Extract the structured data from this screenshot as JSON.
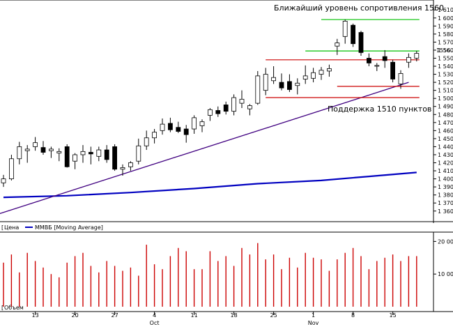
{
  "annotations": {
    "resistance": "Ближайший уровень сопротивления 1560",
    "support": "Поддержка 1510 пунктов"
  },
  "price_panel": {
    "legend_price": "Цена",
    "legend_ma": "ММВБ [Moving Average]",
    "last_price_label": "1556."
  },
  "volume_panel": {
    "legend": "Объем"
  },
  "colors": {
    "bull_body": "#ffffff",
    "bear_body": "#000000",
    "wick": "#000000",
    "moving_average": "#0000c0",
    "trendline": "#400080",
    "resistance_line": "#00c000",
    "level_line": "#cc0000",
    "volume_bar": "#cc0000"
  },
  "chart_data": [
    {
      "type": "candlestick",
      "ylim": [
        1352,
        1618
      ],
      "yticks": [
        1360,
        1370,
        1380,
        1390,
        1400,
        1410,
        1420,
        1430,
        1440,
        1450,
        1460,
        1470,
        1480,
        1490,
        1500,
        1510,
        1520,
        1530,
        1540,
        1550,
        1560,
        1570,
        1580,
        1590,
        1600,
        1610
      ],
      "x_tick_labels": [
        "13",
        "20",
        "27",
        "4",
        "11",
        "18",
        "25",
        "1",
        "8",
        "15"
      ],
      "x_tick_indices": [
        4,
        9,
        14,
        19,
        24,
        29,
        34,
        39,
        44,
        49
      ],
      "month_labels": [
        {
          "label": "Oct",
          "index": 19
        },
        {
          "label": "Nov",
          "index": 39
        }
      ],
      "candles": [
        {
          "o": 1395,
          "h": 1405,
          "l": 1390,
          "c": 1400
        },
        {
          "o": 1400,
          "h": 1430,
          "l": 1398,
          "c": 1425
        },
        {
          "o": 1425,
          "h": 1446,
          "l": 1418,
          "c": 1440
        },
        {
          "o": 1435,
          "h": 1442,
          "l": 1420,
          "c": 1437
        },
        {
          "o": 1440,
          "h": 1452,
          "l": 1435,
          "c": 1445
        },
        {
          "o": 1439,
          "h": 1447,
          "l": 1430,
          "c": 1433
        },
        {
          "o": 1435,
          "h": 1440,
          "l": 1426,
          "c": 1437
        },
        {
          "o": 1432,
          "h": 1438,
          "l": 1422,
          "c": 1434
        },
        {
          "o": 1440,
          "h": 1443,
          "l": 1414,
          "c": 1415
        },
        {
          "o": 1422,
          "h": 1432,
          "l": 1412,
          "c": 1430
        },
        {
          "o": 1430,
          "h": 1442,
          "l": 1420,
          "c": 1434
        },
        {
          "o": 1433,
          "h": 1440,
          "l": 1418,
          "c": 1431
        },
        {
          "o": 1428,
          "h": 1440,
          "l": 1422,
          "c": 1436
        },
        {
          "o": 1436,
          "h": 1442,
          "l": 1420,
          "c": 1424
        },
        {
          "o": 1440,
          "h": 1443,
          "l": 1410,
          "c": 1412
        },
        {
          "o": 1412,
          "h": 1418,
          "l": 1404,
          "c": 1414
        },
        {
          "o": 1415,
          "h": 1422,
          "l": 1410,
          "c": 1420
        },
        {
          "o": 1422,
          "h": 1450,
          "l": 1418,
          "c": 1441
        },
        {
          "o": 1441,
          "h": 1460,
          "l": 1436,
          "c": 1451
        },
        {
          "o": 1451,
          "h": 1462,
          "l": 1444,
          "c": 1458
        },
        {
          "o": 1460,
          "h": 1475,
          "l": 1455,
          "c": 1468
        },
        {
          "o": 1469,
          "h": 1476,
          "l": 1458,
          "c": 1461
        },
        {
          "o": 1464,
          "h": 1471,
          "l": 1457,
          "c": 1459
        },
        {
          "o": 1462,
          "h": 1467,
          "l": 1445,
          "c": 1455
        },
        {
          "o": 1462,
          "h": 1479,
          "l": 1456,
          "c": 1476
        },
        {
          "o": 1466,
          "h": 1474,
          "l": 1458,
          "c": 1471
        },
        {
          "o": 1479,
          "h": 1488,
          "l": 1472,
          "c": 1486
        },
        {
          "o": 1485,
          "h": 1490,
          "l": 1477,
          "c": 1481
        },
        {
          "o": 1492,
          "h": 1496,
          "l": 1480,
          "c": 1484
        },
        {
          "o": 1484,
          "h": 1505,
          "l": 1479,
          "c": 1501
        },
        {
          "o": 1494,
          "h": 1510,
          "l": 1488,
          "c": 1499
        },
        {
          "o": 1487,
          "h": 1493,
          "l": 1479,
          "c": 1491
        },
        {
          "o": 1494,
          "h": 1534,
          "l": 1492,
          "c": 1528
        },
        {
          "o": 1510,
          "h": 1538,
          "l": 1504,
          "c": 1530
        },
        {
          "o": 1522,
          "h": 1540,
          "l": 1518,
          "c": 1526
        },
        {
          "o": 1520,
          "h": 1531,
          "l": 1510,
          "c": 1513
        },
        {
          "o": 1521,
          "h": 1530,
          "l": 1508,
          "c": 1511
        },
        {
          "o": 1516,
          "h": 1525,
          "l": 1505,
          "c": 1519
        },
        {
          "o": 1524,
          "h": 1541,
          "l": 1518,
          "c": 1528
        },
        {
          "o": 1525,
          "h": 1538,
          "l": 1520,
          "c": 1532
        },
        {
          "o": 1530,
          "h": 1539,
          "l": 1523,
          "c": 1535
        },
        {
          "o": 1534,
          "h": 1542,
          "l": 1527,
          "c": 1537
        },
        {
          "o": 1565,
          "h": 1574,
          "l": 1554,
          "c": 1569
        },
        {
          "o": 1577,
          "h": 1598,
          "l": 1568,
          "c": 1596
        },
        {
          "o": 1591,
          "h": 1593,
          "l": 1564,
          "c": 1568
        },
        {
          "o": 1582,
          "h": 1584,
          "l": 1553,
          "c": 1557
        },
        {
          "o": 1550,
          "h": 1556,
          "l": 1540,
          "c": 1544
        },
        {
          "o": 1540,
          "h": 1544,
          "l": 1534,
          "c": 1541
        },
        {
          "o": 1552,
          "h": 1560,
          "l": 1538,
          "c": 1547
        },
        {
          "o": 1545,
          "h": 1548,
          "l": 1520,
          "c": 1524
        },
        {
          "o": 1518,
          "h": 1535,
          "l": 1512,
          "c": 1531
        },
        {
          "o": 1545,
          "h": 1556,
          "l": 1538,
          "c": 1551
        },
        {
          "o": 1550,
          "h": 1559,
          "l": 1546,
          "c": 1556
        }
      ],
      "moving_average": [
        {
          "i": 0,
          "v": 1377
        },
        {
          "i": 8,
          "v": 1379
        },
        {
          "i": 16,
          "v": 1383
        },
        {
          "i": 24,
          "v": 1388
        },
        {
          "i": 32,
          "v": 1394
        },
        {
          "i": 40,
          "v": 1398
        },
        {
          "i": 46,
          "v": 1403
        },
        {
          "i": 52,
          "v": 1408
        }
      ],
      "trendline": [
        {
          "i": -2,
          "v": 1352
        },
        {
          "i": 51,
          "v": 1520
        }
      ],
      "levels": [
        {
          "name": "resistance-1600",
          "value": 1598,
          "from": 40,
          "to": 52,
          "color": "resistance_line"
        },
        {
          "name": "resistance-1560",
          "value": 1559,
          "from": 38,
          "to": 52,
          "color": "resistance_line"
        },
        {
          "name": "level-1548",
          "value": 1548,
          "from": 33,
          "to": 52,
          "color": "level_line"
        },
        {
          "name": "level-1515",
          "value": 1515,
          "from": 42,
          "to": 52,
          "color": "level_line"
        },
        {
          "name": "support-1501",
          "value": 1501,
          "from": 33,
          "to": 52,
          "color": "level_line"
        }
      ]
    },
    {
      "type": "bar",
      "ylim": [
        0,
        22000
      ],
      "yticks": [
        10000,
        20000
      ],
      "ytick_labels": [
        "10 000",
        "20 000"
      ],
      "values": [
        13500,
        16000,
        10500,
        16500,
        14000,
        12000,
        10000,
        9000,
        13500,
        15500,
        16500,
        12500,
        10500,
        14000,
        12500,
        11000,
        12000,
        9500,
        19000,
        13000,
        11500,
        15500,
        18000,
        17000,
        11500,
        11500,
        17000,
        14000,
        15500,
        12500,
        18000,
        16000,
        19500,
        14500,
        16000,
        11500,
        15000,
        12000,
        16500,
        15000,
        14500,
        11000,
        14500,
        16500,
        18000,
        15500,
        11500,
        14000,
        15000,
        16000,
        14000,
        15500,
        15500
      ]
    }
  ]
}
